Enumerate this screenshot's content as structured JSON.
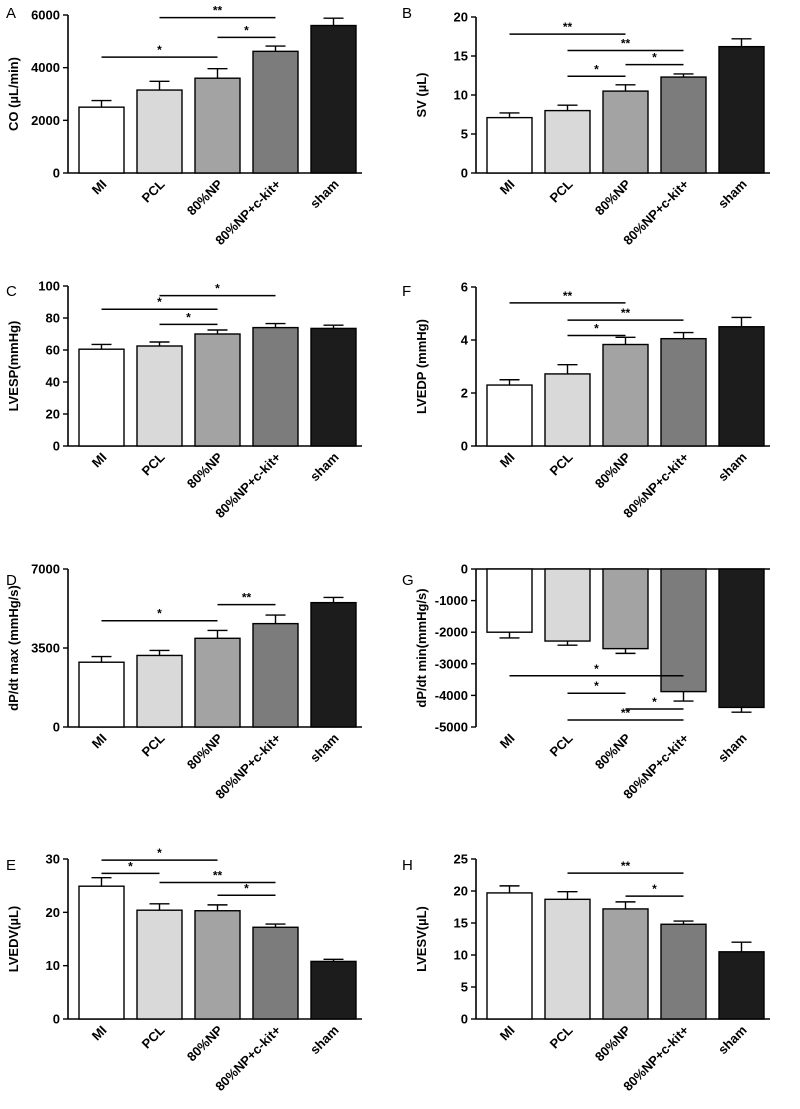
{
  "chart_data": [
    {
      "panel": "A",
      "type": "bar",
      "ylabel": "CO (µL/min)",
      "ylim": [
        0,
        6000
      ],
      "yticks": [
        0,
        2000,
        4000,
        6000
      ],
      "ytick_labels": [
        "0",
        "2000",
        "4000",
        "6000"
      ],
      "categories": [
        "MI",
        "PCL",
        "80%NP",
        "80%NP+c-kit+",
        "sham"
      ],
      "values": [
        2500,
        3150,
        3600,
        4620,
        5600
      ],
      "errors": [
        250,
        330,
        360,
        200,
        280
      ],
      "colors": [
        "#ffffff",
        "#d9d9d9",
        "#a3a3a3",
        "#7c7c7c",
        "#1c1c1c"
      ],
      "significance": [
        {
          "from": 0,
          "to": 2,
          "y": 4400,
          "label": "*"
        },
        {
          "from": 1,
          "to": 3,
          "y": 5900,
          "label": "**"
        },
        {
          "from": 2,
          "to": 3,
          "y": 5150,
          "label": "*"
        }
      ]
    },
    {
      "panel": "B",
      "type": "bar",
      "ylabel": "SV (µL)",
      "ylim": [
        0,
        20
      ],
      "yticks": [
        0,
        5,
        10,
        15,
        20
      ],
      "ytick_labels": [
        "0",
        "5",
        "10",
        "15",
        "20"
      ],
      "categories": [
        "MI",
        "PCL",
        "80%NP",
        "80%NP+c-kit+",
        "sham"
      ],
      "values": [
        7.1,
        8.0,
        10.5,
        12.3,
        16.2
      ],
      "errors": [
        0.6,
        0.7,
        0.8,
        0.4,
        1.0
      ],
      "colors": [
        "#ffffff",
        "#d9d9d9",
        "#a3a3a3",
        "#7c7c7c",
        "#1c1c1c"
      ],
      "significance": [
        {
          "from": 0,
          "to": 2,
          "y": 17.8,
          "label": "**"
        },
        {
          "from": 1,
          "to": 3,
          "y": 15.7,
          "label": "**"
        },
        {
          "from": 1,
          "to": 2,
          "y": 12.4,
          "label": "*"
        },
        {
          "from": 2,
          "to": 3,
          "y": 13.9,
          "label": "*"
        }
      ]
    },
    {
      "panel": "C",
      "type": "bar",
      "ylabel": "LVESP(mmHg)",
      "ylim": [
        0,
        100
      ],
      "yticks": [
        0,
        20,
        40,
        60,
        80,
        100
      ],
      "ytick_labels": [
        "0",
        "20",
        "40",
        "60",
        "80",
        "100"
      ],
      "categories": [
        "MI",
        "PCL",
        "80%NP",
        "80%NP+c-kit+",
        "sham"
      ],
      "values": [
        60.5,
        62.5,
        70,
        74,
        73.5
      ],
      "errors": [
        3,
        2.5,
        2.5,
        2.5,
        2
      ],
      "colors": [
        "#ffffff",
        "#d9d9d9",
        "#a3a3a3",
        "#7c7c7c",
        "#1c1c1c"
      ],
      "significance": [
        {
          "from": 0,
          "to": 2,
          "y": 85.5,
          "label": "*"
        },
        {
          "from": 1,
          "to": 3,
          "y": 94,
          "label": "*"
        },
        {
          "from": 1,
          "to": 2,
          "y": 76,
          "label": "*"
        }
      ]
    },
    {
      "panel": "F",
      "type": "bar",
      "ylabel": "LVEDP (mmHg)",
      "ylim": [
        0,
        6
      ],
      "yticks": [
        0,
        2,
        4,
        6
      ],
      "ytick_labels": [
        "0",
        "2",
        "4",
        "6"
      ],
      "categories": [
        "MI",
        "PCL",
        "80%NP",
        "80%NP+c-kit+",
        "sham"
      ],
      "values": [
        2.3,
        2.72,
        3.83,
        4.05,
        4.5
      ],
      "errors": [
        0.2,
        0.35,
        0.27,
        0.23,
        0.35
      ],
      "colors": [
        "#ffffff",
        "#d9d9d9",
        "#a3a3a3",
        "#7c7c7c",
        "#1c1c1c"
      ],
      "significance": [
        {
          "from": 0,
          "to": 2,
          "y": 5.4,
          "label": "**"
        },
        {
          "from": 1,
          "to": 3,
          "y": 4.75,
          "label": "**"
        },
        {
          "from": 1,
          "to": 2,
          "y": 4.17,
          "label": "*"
        }
      ]
    },
    {
      "panel": "D",
      "type": "bar",
      "ylabel": "dP/dt max (mmHg/s)",
      "ylim": [
        0,
        7000
      ],
      "yticks": [
        0,
        3500,
        7000
      ],
      "ytick_labels": [
        "0",
        "3500",
        "7000"
      ],
      "categories": [
        "MI",
        "PCL",
        "80%NP",
        "80%NP+c-kit+",
        "sham"
      ],
      "values": [
        2870,
        3170,
        3930,
        4580,
        5510
      ],
      "errors": [
        250,
        220,
        350,
        380,
        230
      ],
      "colors": [
        "#ffffff",
        "#d9d9d9",
        "#a3a3a3",
        "#7c7c7c",
        "#1c1c1c"
      ],
      "significance": [
        {
          "from": 0,
          "to": 2,
          "y": 4710,
          "label": "*"
        },
        {
          "from": 2,
          "to": 3,
          "y": 5420,
          "label": "**"
        }
      ]
    },
    {
      "panel": "G",
      "type": "bar",
      "ylabel": "dP/dt min(mmHg/s)",
      "ylim": [
        -5000,
        0
      ],
      "yticks": [
        0,
        -1000,
        -2000,
        -3000,
        -4000,
        -5000
      ],
      "ytick_labels": [
        "0",
        "-1000",
        "-2000",
        "-3000",
        "-4000",
        "-5000"
      ],
      "categories": [
        "MI",
        "PCL",
        "80%NP",
        "80%NP+c-kit+",
        "sham"
      ],
      "values": [
        -2000,
        -2280,
        -2520,
        -3880,
        -4380
      ],
      "errors": [
        180,
        130,
        150,
        300,
        150
      ],
      "colors": [
        "#ffffff",
        "#d9d9d9",
        "#a3a3a3",
        "#7c7c7c",
        "#1c1c1c"
      ],
      "significance": [
        {
          "from": 0,
          "to": 3,
          "y": -3380,
          "label": "*"
        },
        {
          "from": 1,
          "to": 2,
          "y": -3930,
          "label": "*"
        },
        {
          "from": 2,
          "to": 3,
          "y": -4430,
          "label": "*"
        },
        {
          "from": 1,
          "to": 3,
          "y": -4780,
          "label": "**"
        }
      ]
    },
    {
      "panel": "E",
      "type": "bar",
      "ylabel": "LVEDV(µL)",
      "ylim": [
        0,
        30
      ],
      "yticks": [
        0,
        10,
        20,
        30
      ],
      "ytick_labels": [
        "0",
        "10",
        "20",
        "30"
      ],
      "categories": [
        "MI",
        "PCL",
        "80%NP",
        "80%NP+c-kit+",
        "sham"
      ],
      "values": [
        24.9,
        20.4,
        20.3,
        17.2,
        10.8
      ],
      "errors": [
        1.6,
        1.2,
        1.1,
        0.6,
        0.4
      ],
      "colors": [
        "#ffffff",
        "#d9d9d9",
        "#a3a3a3",
        "#7c7c7c",
        "#1c1c1c"
      ],
      "significance": [
        {
          "from": 0,
          "to": 2,
          "y": 29.8,
          "label": "*"
        },
        {
          "from": 0,
          "to": 1,
          "y": 27.3,
          "label": "*"
        },
        {
          "from": 1,
          "to": 3,
          "y": 25.6,
          "label": "**"
        },
        {
          "from": 2,
          "to": 3,
          "y": 23.2,
          "label": "*"
        }
      ]
    },
    {
      "panel": "H",
      "type": "bar",
      "ylabel": "LVESV(µL)",
      "ylim": [
        0,
        25
      ],
      "yticks": [
        0,
        5,
        10,
        15,
        20,
        25
      ],
      "ytick_labels": [
        "0",
        "5",
        "10",
        "15",
        "20",
        "25"
      ],
      "categories": [
        "MI",
        "PCL",
        "80%NP",
        "80%NP+c-kit+",
        "sham"
      ],
      "values": [
        19.7,
        18.7,
        17.2,
        14.8,
        10.5
      ],
      "errors": [
        1.1,
        1.2,
        1.1,
        0.5,
        1.5
      ],
      "colors": [
        "#ffffff",
        "#d9d9d9",
        "#a3a3a3",
        "#7c7c7c",
        "#1c1c1c"
      ],
      "significance": [
        {
          "from": 1,
          "to": 3,
          "y": 22.8,
          "label": "**"
        },
        {
          "from": 2,
          "to": 3,
          "y": 19.2,
          "label": "*"
        }
      ]
    }
  ]
}
